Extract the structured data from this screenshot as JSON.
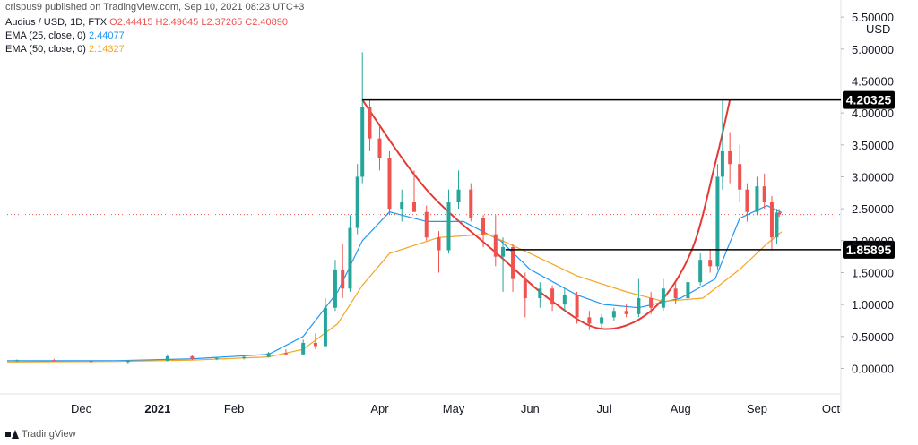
{
  "credit": "crispus9 published on TradingView.com, Sep 10, 2021 08:23 UTC+3",
  "legend": {
    "symbol": "Audius / USD, 1D, FTX",
    "open": "O2.44415",
    "high": "H2.49645",
    "low": "L2.37265",
    "close": "C2.40890",
    "ema25_label": "EMA (25, close, 0)",
    "ema25_value": "2.44077",
    "ema50_label": "EMA (50, close, 0)",
    "ema50_value": "2.14327"
  },
  "currency": "USD",
  "footer": "TradingView",
  "colors": {
    "up": "#26a69a",
    "down": "#ef5350",
    "ema25": "#2196f3",
    "ema50": "#f5a623",
    "curve": "#e53935",
    "level": "#000000"
  },
  "chart_data": {
    "type": "candlestick",
    "y_ticks": [
      "0.00000",
      "0.50000",
      "1.00000",
      "1.50000",
      "2.00000",
      "2.50000",
      "3.00000",
      "3.50000",
      "4.00000",
      "4.50000",
      "5.00000",
      "5.50000"
    ],
    "ylim": [
      -0.4,
      5.6
    ],
    "x_ticks": [
      "Dec",
      "2021",
      "Feb",
      "Apr",
      "May",
      "Jun",
      "Jul",
      "Aug",
      "Sep",
      "Oct"
    ],
    "x_tick_dates": [
      "2020-12-01",
      "2021-01-01",
      "2021-02-01",
      "2021-04-01",
      "2021-05-01",
      "2021-06-01",
      "2021-07-01",
      "2021-08-01",
      "2021-09-01",
      "2021-10-01"
    ],
    "x_range": [
      "2020-11-01",
      "2021-10-05"
    ],
    "levels": [
      {
        "value": 4.20325,
        "label": "4.20325",
        "start": "2021-03-25"
      },
      {
        "value": 1.85895,
        "label": "1.85895",
        "start": "2021-05-22"
      }
    ],
    "cup_curve": {
      "points": [
        [
          "2021-03-25",
          4.20325
        ],
        [
          "2021-04-20",
          2.8
        ],
        [
          "2021-05-20",
          1.75
        ],
        [
          "2021-06-10",
          1.05
        ],
        [
          "2021-06-30",
          0.62
        ],
        [
          "2021-07-20",
          0.9
        ],
        [
          "2021-08-05",
          1.8
        ],
        [
          "2021-08-15",
          3.2
        ],
        [
          "2021-08-21",
          4.20325
        ]
      ]
    },
    "current_price": 2.4089,
    "series": [
      {
        "name": "EMA (25, close, 0)",
        "kind": "ema25",
        "points": [
          [
            "2020-11-01",
            0.12
          ],
          [
            "2020-12-15",
            0.12
          ],
          [
            "2021-01-15",
            0.15
          ],
          [
            "2021-02-15",
            0.22
          ],
          [
            "2021-03-01",
            0.5
          ],
          [
            "2021-03-15",
            1.2
          ],
          [
            "2021-03-25",
            2.0
          ],
          [
            "2021-04-05",
            2.45
          ],
          [
            "2021-04-20",
            2.3
          ],
          [
            "2021-05-05",
            2.3
          ],
          [
            "2021-05-20",
            2.0
          ],
          [
            "2021-06-01",
            1.55
          ],
          [
            "2021-06-20",
            1.15
          ],
          [
            "2021-07-01",
            1.0
          ],
          [
            "2021-07-15",
            0.95
          ],
          [
            "2021-08-01",
            1.1
          ],
          [
            "2021-08-15",
            1.4
          ],
          [
            "2021-08-25",
            2.35
          ],
          [
            "2021-09-05",
            2.55
          ],
          [
            "2021-09-11",
            2.44
          ]
        ]
      },
      {
        "name": "EMA (50, close, 0)",
        "kind": "ema50",
        "points": [
          [
            "2020-11-01",
            0.1
          ],
          [
            "2020-12-15",
            0.11
          ],
          [
            "2021-01-15",
            0.13
          ],
          [
            "2021-02-15",
            0.18
          ],
          [
            "2021-03-01",
            0.3
          ],
          [
            "2021-03-15",
            0.7
          ],
          [
            "2021-03-25",
            1.3
          ],
          [
            "2021-04-05",
            1.8
          ],
          [
            "2021-04-25",
            2.05
          ],
          [
            "2021-05-15",
            2.1
          ],
          [
            "2021-06-01",
            1.8
          ],
          [
            "2021-06-20",
            1.45
          ],
          [
            "2021-07-10",
            1.2
          ],
          [
            "2021-07-25",
            1.05
          ],
          [
            "2021-08-10",
            1.1
          ],
          [
            "2021-08-25",
            1.55
          ],
          [
            "2021-09-05",
            1.95
          ],
          [
            "2021-09-11",
            2.14
          ]
        ]
      }
    ],
    "candles": [
      [
        "2020-11-05",
        0.12,
        0.14,
        0.1,
        0.13
      ],
      [
        "2020-11-20",
        0.13,
        0.15,
        0.11,
        0.12
      ],
      [
        "2020-12-05",
        0.12,
        0.14,
        0.09,
        0.1
      ],
      [
        "2020-12-20",
        0.1,
        0.13,
        0.08,
        0.12
      ],
      [
        "2021-01-05",
        0.12,
        0.22,
        0.11,
        0.19
      ],
      [
        "2021-01-15",
        0.19,
        0.21,
        0.13,
        0.15
      ],
      [
        "2021-01-25",
        0.15,
        0.18,
        0.13,
        0.16
      ],
      [
        "2021-02-05",
        0.16,
        0.2,
        0.14,
        0.18
      ],
      [
        "2021-02-15",
        0.18,
        0.26,
        0.17,
        0.24
      ],
      [
        "2021-02-22",
        0.24,
        0.3,
        0.2,
        0.22
      ],
      [
        "2021-03-01",
        0.22,
        0.45,
        0.21,
        0.4
      ],
      [
        "2021-03-06",
        0.4,
        0.55,
        0.3,
        0.35
      ],
      [
        "2021-03-10",
        0.35,
        1.1,
        0.34,
        0.95
      ],
      [
        "2021-03-14",
        0.95,
        1.7,
        0.9,
        1.55
      ],
      [
        "2021-03-17",
        1.55,
        1.95,
        1.1,
        1.25
      ],
      [
        "2021-03-20",
        1.25,
        2.4,
        1.2,
        2.2
      ],
      [
        "2021-03-23",
        2.2,
        3.2,
        2.1,
        3.0
      ],
      [
        "2021-03-25",
        3.0,
        4.95,
        2.9,
        4.1
      ],
      [
        "2021-03-28",
        4.1,
        4.2,
        3.4,
        3.6
      ],
      [
        "2021-04-01",
        3.6,
        3.8,
        3.1,
        3.3
      ],
      [
        "2021-04-05",
        3.3,
        3.4,
        2.4,
        2.5
      ],
      [
        "2021-04-10",
        2.5,
        2.8,
        2.3,
        2.6
      ],
      [
        "2021-04-15",
        2.6,
        3.1,
        2.5,
        2.45
      ],
      [
        "2021-04-20",
        2.45,
        2.55,
        2.0,
        2.05
      ],
      [
        "2021-04-25",
        2.05,
        2.15,
        1.5,
        1.85
      ],
      [
        "2021-04-29",
        1.85,
        2.8,
        1.8,
        2.6
      ],
      [
        "2021-05-03",
        2.6,
        3.1,
        2.5,
        2.8
      ],
      [
        "2021-05-08",
        2.8,
        2.9,
        2.3,
        2.35
      ],
      [
        "2021-05-13",
        2.35,
        2.4,
        1.9,
        2.1
      ],
      [
        "2021-05-18",
        2.1,
        2.4,
        1.6,
        1.75
      ],
      [
        "2021-05-21",
        1.75,
        2.05,
        1.2,
        1.9
      ],
      [
        "2021-05-25",
        1.9,
        1.95,
        1.2,
        1.4
      ],
      [
        "2021-05-30",
        1.4,
        1.5,
        0.8,
        1.1
      ],
      [
        "2021-06-05",
        1.1,
        1.35,
        0.95,
        1.25
      ],
      [
        "2021-06-10",
        1.25,
        1.3,
        0.9,
        1.0
      ],
      [
        "2021-06-15",
        1.0,
        1.25,
        0.9,
        1.15
      ],
      [
        "2021-06-20",
        1.15,
        1.2,
        0.7,
        0.8
      ],
      [
        "2021-06-25",
        0.8,
        0.9,
        0.6,
        0.7
      ],
      [
        "2021-06-30",
        0.7,
        0.85,
        0.62,
        0.8
      ],
      [
        "2021-07-05",
        0.8,
        0.95,
        0.75,
        0.9
      ],
      [
        "2021-07-10",
        0.9,
        1.0,
        0.8,
        0.85
      ],
      [
        "2021-07-15",
        0.85,
        1.4,
        0.8,
        1.1
      ],
      [
        "2021-07-20",
        1.1,
        1.2,
        0.85,
        0.95
      ],
      [
        "2021-07-25",
        0.95,
        1.4,
        0.9,
        1.25
      ],
      [
        "2021-07-30",
        1.25,
        1.35,
        1.0,
        1.1
      ],
      [
        "2021-08-04",
        1.1,
        1.45,
        1.05,
        1.35
      ],
      [
        "2021-08-09",
        1.35,
        1.8,
        1.3,
        1.7
      ],
      [
        "2021-08-13",
        1.7,
        1.85,
        1.5,
        1.6
      ],
      [
        "2021-08-16",
        1.6,
        3.2,
        1.55,
        3.0
      ],
      [
        "2021-08-18",
        3.0,
        4.2,
        2.8,
        3.4
      ],
      [
        "2021-08-21",
        3.4,
        3.7,
        2.9,
        3.2
      ],
      [
        "2021-08-25",
        3.2,
        3.5,
        2.6,
        2.8
      ],
      [
        "2021-08-28",
        2.8,
        2.9,
        2.3,
        2.45
      ],
      [
        "2021-09-01",
        2.45,
        3.0,
        2.4,
        2.85
      ],
      [
        "2021-09-04",
        2.85,
        3.05,
        2.5,
        2.6
      ],
      [
        "2021-09-07",
        2.6,
        2.7,
        1.85,
        2.05
      ],
      [
        "2021-09-09",
        2.05,
        2.5,
        1.95,
        2.44
      ],
      [
        "2021-09-10",
        2.44,
        2.49645,
        2.37265,
        2.4089
      ]
    ]
  }
}
